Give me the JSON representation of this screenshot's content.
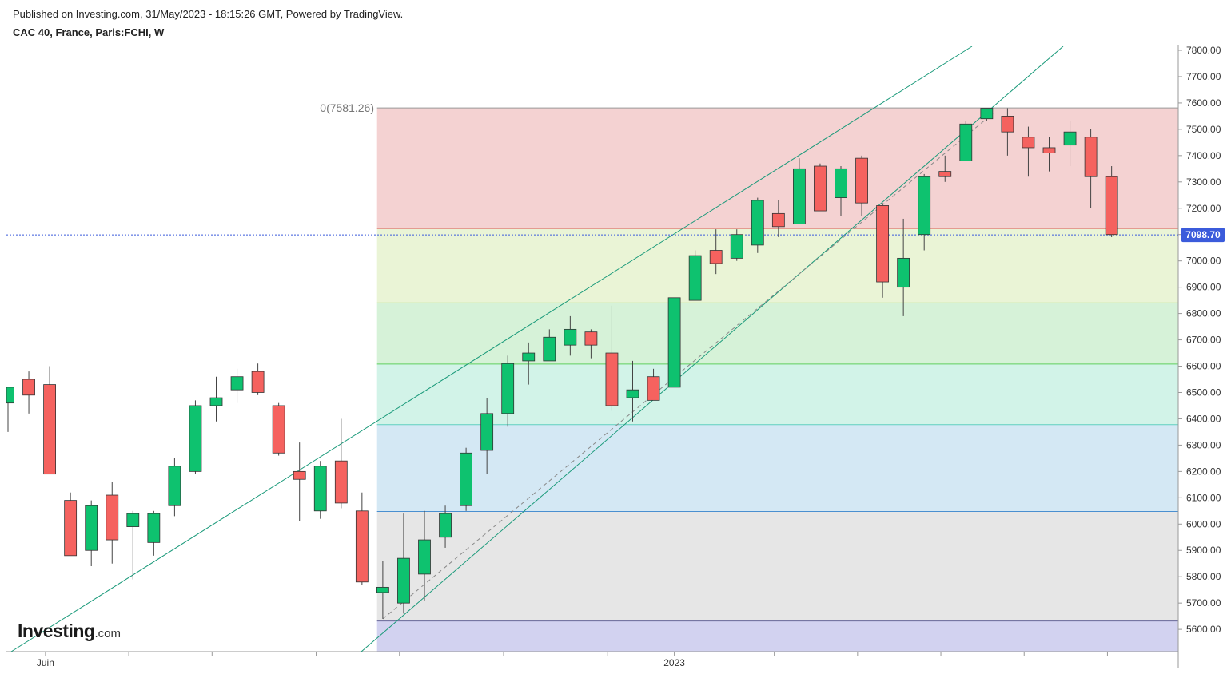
{
  "header": {
    "published": "Published on Investing.com, 31/May/2023 - 18:15:26 GMT, Powered by TradingView.",
    "symbol": "CAC 40, France, Paris:FCHI, W"
  },
  "logo": {
    "main": "Investing",
    "suffix": ".com"
  },
  "colors": {
    "up": "#0ec26f",
    "down": "#f5625f",
    "grid": "#c8c8c8",
    "current_price_bg": "#3b5bdb"
  },
  "chart_data": {
    "type": "candlestick",
    "timeframe": "W",
    "y_axis": {
      "min": 5500,
      "max": 7800,
      "ticks": [
        "7800.00",
        "7700.00",
        "7600.00",
        "7500.00",
        "7400.00",
        "7300.00",
        "7200.00",
        "7100.00",
        "7000.00",
        "6900.00",
        "6800.00",
        "6700.00",
        "6600.00",
        "6500.00",
        "6400.00",
        "6300.00",
        "6200.00",
        "6100.00",
        "6000.00",
        "5900.00",
        "5800.00",
        "5700.00",
        "5600.00"
      ],
      "tick_values": [
        7800,
        7700,
        7600,
        7500,
        7400,
        7300,
        7200,
        7100,
        7000,
        6900,
        6800,
        6700,
        6600,
        6500,
        6400,
        6300,
        6200,
        6100,
        6000,
        5900,
        5800,
        5700,
        5600
      ]
    },
    "x_axis": {
      "labels": [
        {
          "text": "Juin",
          "index": 1.8
        },
        {
          "text": "2023",
          "index": 32
        }
      ]
    },
    "current_price": {
      "value": 7098.7,
      "label": "7098.70"
    },
    "fib_label": "0(7581.26)",
    "fib": {
      "levels": [
        7581.26,
        7123,
        6840,
        6608,
        6378,
        6048,
        5632,
        5500
      ],
      "fills": [
        "#f4d2d2",
        "#eaf4d6",
        "#d6f2d8",
        "#d2f3e8",
        "#d4e8f4",
        "#e6e6e6",
        "#d2d2f0"
      ],
      "lines": [
        "#999999",
        "#e06666",
        "#8fcf5f",
        "#5fcf5f",
        "#5fcfbf",
        "#4a8fd0",
        "#666699"
      ],
      "start_index": 17.8
    },
    "channel_color": "#1a9a7a",
    "candles": [
      {
        "o": 6460,
        "h": 6520,
        "l": 6350,
        "c": 6520
      },
      {
        "o": 6550,
        "h": 6580,
        "l": 6420,
        "c": 6490
      },
      {
        "o": 6530,
        "h": 6600,
        "l": 6190,
        "c": 6190
      },
      {
        "o": 6090,
        "h": 6120,
        "l": 5880,
        "c": 5880
      },
      {
        "o": 5900,
        "h": 6090,
        "l": 5840,
        "c": 6070
      },
      {
        "o": 6110,
        "h": 6160,
        "l": 5850,
        "c": 5940
      },
      {
        "o": 5990,
        "h": 6050,
        "l": 5790,
        "c": 6040
      },
      {
        "o": 5930,
        "h": 6050,
        "l": 5880,
        "c": 6040
      },
      {
        "o": 6070,
        "h": 6250,
        "l": 6030,
        "c": 6220
      },
      {
        "o": 6200,
        "h": 6470,
        "l": 6190,
        "c": 6450
      },
      {
        "o": 6450,
        "h": 6560,
        "l": 6390,
        "c": 6480
      },
      {
        "o": 6510,
        "h": 6590,
        "l": 6460,
        "c": 6560
      },
      {
        "o": 6580,
        "h": 6610,
        "l": 6490,
        "c": 6500
      },
      {
        "o": 6450,
        "h": 6460,
        "l": 6260,
        "c": 6270
      },
      {
        "o": 6200,
        "h": 6310,
        "l": 6010,
        "c": 6170
      },
      {
        "o": 6050,
        "h": 6240,
        "l": 6020,
        "c": 6220
      },
      {
        "o": 6240,
        "h": 6400,
        "l": 6060,
        "c": 6080
      },
      {
        "o": 6050,
        "h": 6120,
        "l": 5770,
        "c": 5780
      },
      {
        "o": 5740,
        "h": 5860,
        "l": 5640,
        "c": 5760
      },
      {
        "o": 5700,
        "h": 6040,
        "l": 5660,
        "c": 5870
      },
      {
        "o": 5810,
        "h": 6050,
        "l": 5710,
        "c": 5940
      },
      {
        "o": 5950,
        "h": 6070,
        "l": 5910,
        "c": 6040
      },
      {
        "o": 6070,
        "h": 6290,
        "l": 6050,
        "c": 6270
      },
      {
        "o": 6280,
        "h": 6480,
        "l": 6190,
        "c": 6420
      },
      {
        "o": 6420,
        "h": 6640,
        "l": 6370,
        "c": 6610
      },
      {
        "o": 6620,
        "h": 6690,
        "l": 6530,
        "c": 6650
      },
      {
        "o": 6620,
        "h": 6740,
        "l": 6620,
        "c": 6710
      },
      {
        "o": 6680,
        "h": 6790,
        "l": 6640,
        "c": 6740
      },
      {
        "o": 6730,
        "h": 6740,
        "l": 6630,
        "c": 6680
      },
      {
        "o": 6650,
        "h": 6830,
        "l": 6430,
        "c": 6450
      },
      {
        "o": 6480,
        "h": 6620,
        "l": 6390,
        "c": 6510
      },
      {
        "o": 6560,
        "h": 6590,
        "l": 6470,
        "c": 6470
      },
      {
        "o": 6520,
        "h": 6860,
        "l": 6520,
        "c": 6860
      },
      {
        "o": 6850,
        "h": 7040,
        "l": 6850,
        "c": 7020
      },
      {
        "o": 7040,
        "h": 7120,
        "l": 6950,
        "c": 6990
      },
      {
        "o": 7010,
        "h": 7120,
        "l": 7000,
        "c": 7100
      },
      {
        "o": 7060,
        "h": 7240,
        "l": 7030,
        "c": 7230
      },
      {
        "o": 7180,
        "h": 7230,
        "l": 7090,
        "c": 7130
      },
      {
        "o": 7140,
        "h": 7390,
        "l": 7140,
        "c": 7350
      },
      {
        "o": 7360,
        "h": 7370,
        "l": 7190,
        "c": 7190
      },
      {
        "o": 7240,
        "h": 7360,
        "l": 7170,
        "c": 7350
      },
      {
        "o": 7390,
        "h": 7400,
        "l": 7170,
        "c": 7220
      },
      {
        "o": 7210,
        "h": 7220,
        "l": 6860,
        "c": 6920
      },
      {
        "o": 6900,
        "h": 7160,
        "l": 6790,
        "c": 7010
      },
      {
        "o": 7100,
        "h": 7330,
        "l": 7040,
        "c": 7320
      },
      {
        "o": 7340,
        "h": 7400,
        "l": 7300,
        "c": 7320
      },
      {
        "o": 7380,
        "h": 7530,
        "l": 7380,
        "c": 7520
      },
      {
        "o": 7540,
        "h": 7580,
        "l": 7530,
        "c": 7580
      },
      {
        "o": 7550,
        "h": 7580,
        "l": 7400,
        "c": 7490
      },
      {
        "o": 7470,
        "h": 7510,
        "l": 7320,
        "c": 7430
      },
      {
        "o": 7430,
        "h": 7470,
        "l": 7340,
        "c": 7410
      },
      {
        "o": 7440,
        "h": 7530,
        "l": 7360,
        "c": 7490
      },
      {
        "o": 7470,
        "h": 7500,
        "l": 7200,
        "c": 7320
      },
      {
        "o": 7320,
        "h": 7360,
        "l": 7090,
        "c": 7100
      }
    ]
  }
}
